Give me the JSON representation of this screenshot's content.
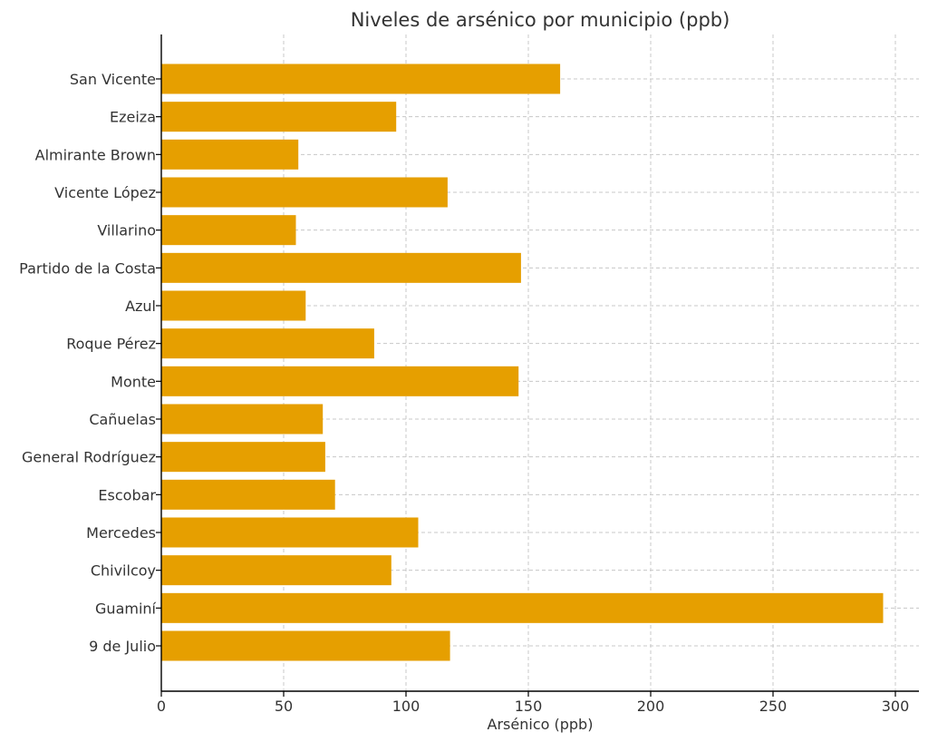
{
  "chart_data": {
    "type": "bar",
    "orientation": "horizontal",
    "title": "Niveles de arsénico por municipio (ppb)",
    "xlabel": "Arsénico (ppb)",
    "ylabel": "",
    "xlim": [
      0,
      310
    ],
    "xticks": [
      0,
      50,
      100,
      150,
      200,
      250,
      300
    ],
    "grid": true,
    "bar_color": "#E69F00",
    "categories": [
      "San Vicente",
      "Ezeiza",
      "Almirante Brown",
      "Vicente López",
      "Villarino",
      "Partido de la Costa",
      "Azul",
      "Roque Pérez",
      "Monte",
      "Cañuelas",
      "General Rodríguez",
      "Escobar",
      "Mercedes",
      "Chivilcoy",
      "Guaminí",
      "9 de Julio"
    ],
    "values": [
      163,
      96,
      56,
      117,
      55,
      147,
      59,
      87,
      146,
      66,
      67,
      71,
      105,
      94,
      295,
      118
    ]
  }
}
